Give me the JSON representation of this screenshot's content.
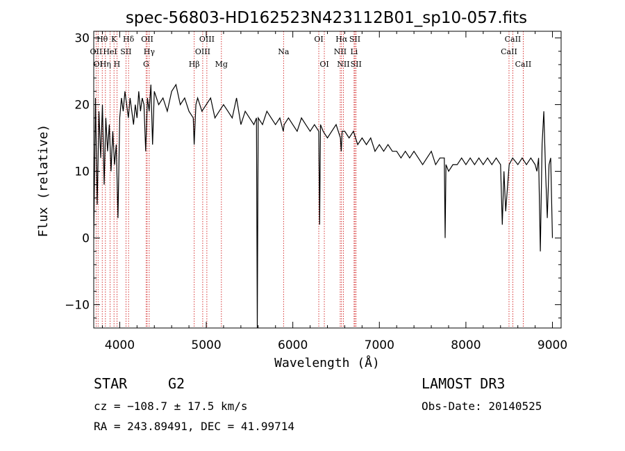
{
  "chart_data": {
    "type": "line",
    "title": "spec-56803-HD162523N423112B01_sp10-057.fits",
    "xlabel": "Wavelength (Å)",
    "ylabel": "Flux (relative)",
    "xlim": [
      3700,
      9100
    ],
    "ylim": [
      -13.5,
      31
    ],
    "xticks": [
      4000,
      5000,
      6000,
      7000,
      8000,
      9000
    ],
    "yticks": [
      -10,
      0,
      10,
      20,
      30
    ],
    "line_color": "#000000",
    "marker_color": "#cc0000",
    "spectrum": {
      "x": [
        3700,
        3720,
        3740,
        3760,
        3780,
        3800,
        3820,
        3840,
        3860,
        3880,
        3900,
        3920,
        3940,
        3960,
        3980,
        4000,
        4020,
        4040,
        4060,
        4080,
        4100,
        4120,
        4140,
        4160,
        4180,
        4200,
        4220,
        4240,
        4260,
        4280,
        4300,
        4320,
        4340,
        4360,
        4380,
        4400,
        4450,
        4500,
        4550,
        4600,
        4650,
        4700,
        4750,
        4800,
        4850,
        4860,
        4880,
        4900,
        4950,
        5000,
        5050,
        5100,
        5150,
        5200,
        5250,
        5300,
        5350,
        5400,
        5450,
        5500,
        5550,
        5580,
        5590,
        5600,
        5650,
        5700,
        5750,
        5800,
        5850,
        5890,
        5900,
        5950,
        6000,
        6050,
        6100,
        6150,
        6200,
        6250,
        6300,
        6310,
        6320,
        6350,
        6400,
        6450,
        6500,
        6550,
        6560,
        6570,
        6600,
        6650,
        6700,
        6750,
        6800,
        6850,
        6900,
        6950,
        7000,
        7050,
        7100,
        7150,
        7200,
        7250,
        7300,
        7350,
        7400,
        7450,
        7500,
        7550,
        7600,
        7650,
        7700,
        7750,
        7760,
        7770,
        7800,
        7850,
        7900,
        7950,
        8000,
        8050,
        8100,
        8150,
        8200,
        8250,
        8300,
        8350,
        8400,
        8420,
        8440,
        8460,
        8500,
        8540,
        8600,
        8650,
        8700,
        8750,
        8800,
        8820,
        8840,
        8860,
        8880,
        8900,
        8920,
        8940,
        8960,
        8980,
        9000
      ],
      "y": [
        0,
        21,
        5,
        19,
        12,
        20,
        8,
        18,
        13,
        17,
        10,
        16,
        11,
        14,
        3,
        18,
        21,
        19,
        22,
        20,
        18,
        21,
        19,
        17,
        20,
        18,
        22,
        19,
        21,
        20,
        13,
        21,
        19,
        23,
        14,
        22,
        20,
        21,
        19,
        22,
        23,
        20,
        21,
        19,
        18,
        14,
        20,
        21,
        19,
        20,
        21,
        18,
        19,
        20,
        19,
        18,
        21,
        17,
        19,
        18,
        17,
        18,
        -13.5,
        18,
        17,
        19,
        18,
        17,
        18,
        16,
        17,
        18,
        17,
        16,
        18,
        17,
        16,
        17,
        16,
        2,
        17,
        16,
        15,
        16,
        17,
        15,
        13,
        16,
        16,
        15,
        16,
        14,
        15,
        14,
        15,
        13,
        14,
        13,
        14,
        13,
        13,
        12,
        13,
        12,
        13,
        12,
        11,
        12,
        13,
        11,
        12,
        12,
        0,
        11,
        10,
        11,
        11,
        12,
        11,
        12,
        11,
        12,
        11,
        12,
        11,
        12,
        11,
        2,
        10,
        4,
        11,
        12,
        11,
        12,
        11,
        12,
        11,
        10,
        12,
        -2,
        14,
        19,
        10,
        3,
        11,
        12,
        0
      ]
    },
    "lines": [
      {
        "label": "Hθ",
        "x": 3798,
        "row": 1
      },
      {
        "label": "K",
        "x": 3934,
        "row": 1
      },
      {
        "label": "Hδ",
        "x": 4102,
        "row": 1
      },
      {
        "label": "OII",
        "x": 4318,
        "row": 1
      },
      {
        "label": "OIII",
        "x": 5007,
        "row": 1
      },
      {
        "label": "OI",
        "x": 6300,
        "row": 1
      },
      {
        "label": "Hα",
        "x": 6563,
        "row": 1
      },
      {
        "label": "SII",
        "x": 6717,
        "row": 1
      },
      {
        "label": "CaII",
        "x": 8542,
        "row": 1
      },
      {
        "label": "OII",
        "x": 3727,
        "row": 2
      },
      {
        "label": "HeI",
        "x": 3889,
        "row": 2
      },
      {
        "label": "SII",
        "x": 4072,
        "row": 2
      },
      {
        "label": "Hγ",
        "x": 4341,
        "row": 2
      },
      {
        "label": "OIII",
        "x": 4959,
        "row": 2
      },
      {
        "label": "Na",
        "x": 5893,
        "row": 2
      },
      {
        "label": "NII",
        "x": 6548,
        "row": 2
      },
      {
        "label": "Li",
        "x": 6708,
        "row": 2
      },
      {
        "label": "CaII",
        "x": 8498,
        "row": 2
      },
      {
        "label": "OI",
        "x": 3750,
        "row": 3
      },
      {
        "label": "Hη",
        "x": 3835,
        "row": 3
      },
      {
        "label": "H",
        "x": 3968,
        "row": 3
      },
      {
        "label": "G",
        "x": 4305,
        "row": 3
      },
      {
        "label": "Hβ",
        "x": 4861,
        "row": 3
      },
      {
        "label": "Mg",
        "x": 5175,
        "row": 3
      },
      {
        "label": "OI",
        "x": 6364,
        "row": 3
      },
      {
        "label": "NII",
        "x": 6584,
        "row": 3
      },
      {
        "label": "SII",
        "x": 6731,
        "row": 3
      },
      {
        "label": "CaII",
        "x": 8662,
        "row": 3
      }
    ]
  },
  "info": {
    "object_type": "STAR",
    "subclass": "G2",
    "survey": "LAMOST DR3",
    "velocity": "cz = −108.7 ± 17.5 km/s",
    "obs_date": "Obs-Date: 20140525",
    "coords": "RA = 243.89491, DEC =  41.99714"
  }
}
